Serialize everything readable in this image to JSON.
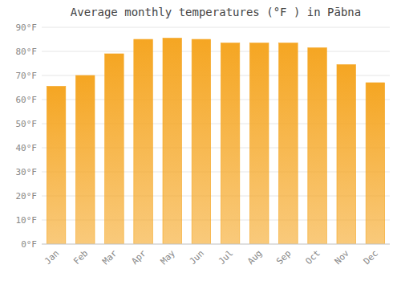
{
  "chart_data": {
    "type": "bar",
    "title": "Average monthly temperatures (°F ) in Pābna",
    "categories": [
      "Jan",
      "Feb",
      "Mar",
      "Apr",
      "May",
      "Jun",
      "Jul",
      "Aug",
      "Sep",
      "Oct",
      "Nov",
      "Dec"
    ],
    "values": [
      65.5,
      70.0,
      79.0,
      85.0,
      85.5,
      85.0,
      83.5,
      83.5,
      83.5,
      81.5,
      74.5,
      67.0
    ],
    "color": "#F5A623",
    "ylim": [
      0,
      90
    ],
    "yticks": [
      {
        "value": 0,
        "label": "0°F"
      },
      {
        "value": 10,
        "label": "10°F"
      },
      {
        "value": 20,
        "label": "20°F"
      },
      {
        "value": 30,
        "label": "30°F"
      },
      {
        "value": 40,
        "label": "40°F"
      },
      {
        "value": 50,
        "label": "50°F"
      },
      {
        "value": 60,
        "label": "60°F"
      },
      {
        "value": 70,
        "label": "70°F"
      },
      {
        "value": 80,
        "label": "80°F"
      },
      {
        "value": 90,
        "label": "90°F"
      }
    ],
    "grid": true
  }
}
